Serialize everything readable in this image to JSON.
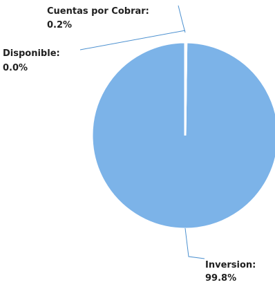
{
  "chart_data": {
    "type": "pie",
    "categories": [
      "Inversion",
      "Cuentas por Cobrar",
      "Disponible"
    ],
    "values": [
      99.8,
      0.2,
      0.0
    ],
    "data_labels": [
      {
        "name": "Inversion:",
        "value": "99.8%"
      },
      {
        "name": "Cuentas por Cobrar:",
        "value": "0.2%"
      },
      {
        "name": "Disponible:",
        "value": "0.0%"
      }
    ],
    "colors": {
      "slice": "#7cb3e8",
      "separator": "#ffffff",
      "leader_line": "#4a8fcf"
    }
  }
}
